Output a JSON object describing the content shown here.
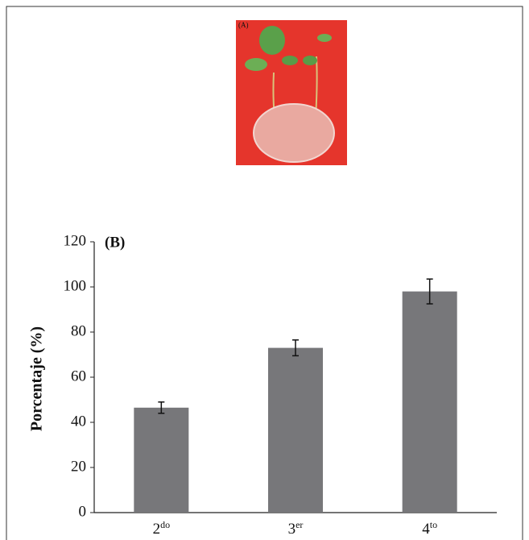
{
  "chart_data": {
    "type": "bar",
    "photo_label": "(A)",
    "panel_label": "(B)",
    "y_label": "Porcentaje (%)",
    "categories": [
      {
        "number": "2",
        "suffix": "do"
      },
      {
        "number": "3",
        "suffix": "er"
      },
      {
        "number": "4",
        "suffix": "to"
      }
    ],
    "values": [
      46.5,
      73,
      98
    ],
    "errors": [
      2.5,
      3.5,
      5.5
    ],
    "color": "#77777a",
    "ylim": [
      0,
      120
    ],
    "yticks": [
      0,
      20,
      40,
      60,
      80,
      100,
      120
    ]
  }
}
